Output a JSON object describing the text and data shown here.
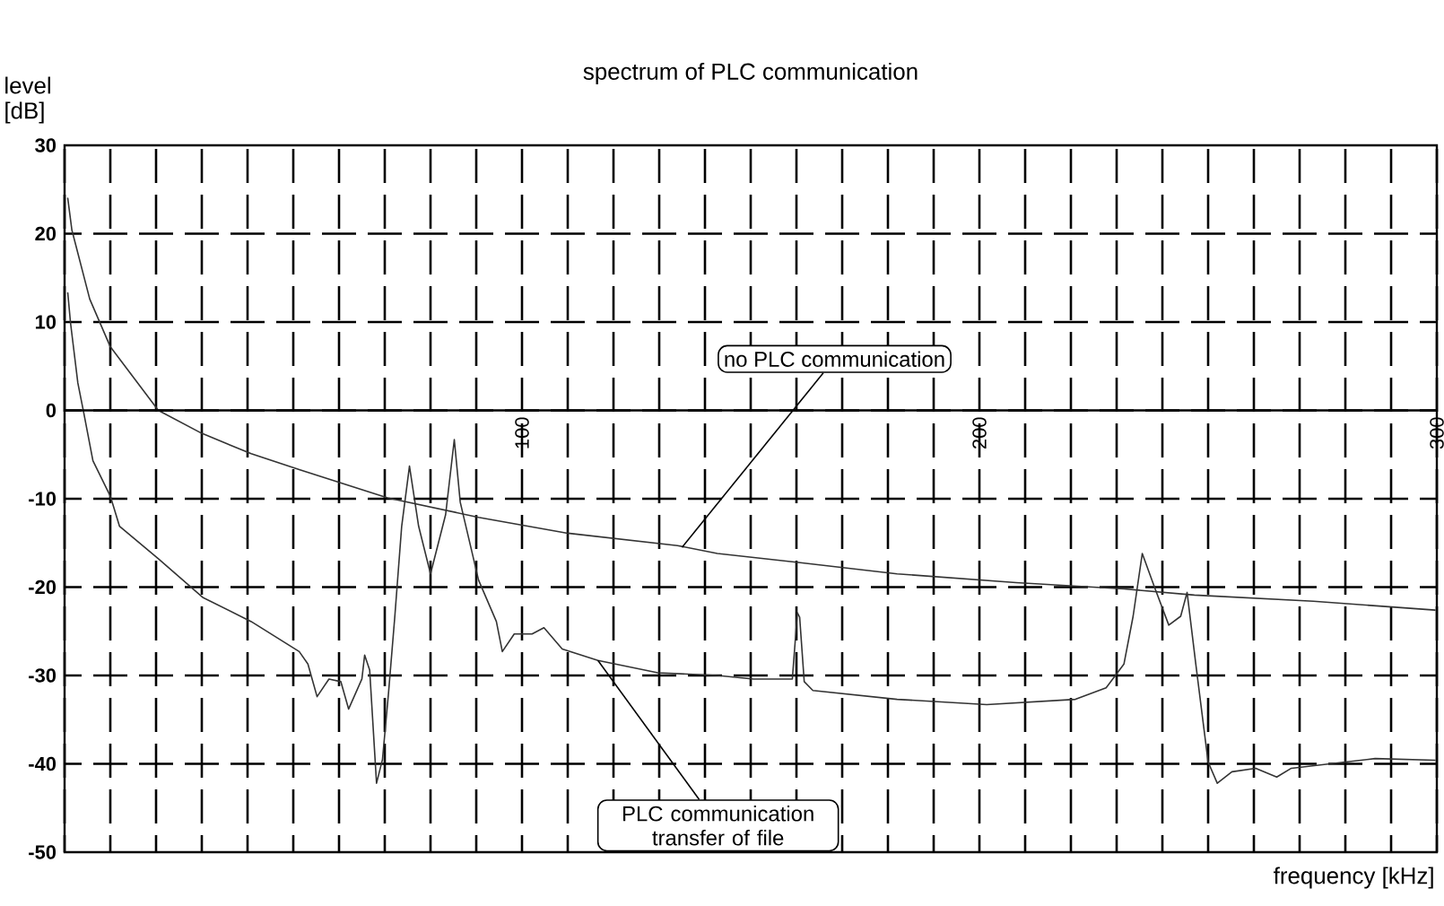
{
  "chart_data": {
    "type": "line",
    "title": "spectrum of PLC communication",
    "xlabel": "frequency [kHz]",
    "ylabel": "level [dB]",
    "xlim": [
      0,
      300
    ],
    "ylim": [
      -50,
      30
    ],
    "xticks": [
      {
        "value": 0,
        "label": null
      },
      {
        "value": 10,
        "label": null
      },
      {
        "value": 20,
        "label": null
      },
      {
        "value": 30,
        "label": null
      },
      {
        "value": 40,
        "label": null
      },
      {
        "value": 50,
        "label": null
      },
      {
        "value": 60,
        "label": null
      },
      {
        "value": 70,
        "label": null
      },
      {
        "value": 80,
        "label": null
      },
      {
        "value": 90,
        "label": null
      },
      100,
      {
        "value": 110,
        "label": null
      },
      {
        "value": 120,
        "label": null
      },
      {
        "value": 130,
        "label": null
      },
      {
        "value": 140,
        "label": null
      },
      {
        "value": 150,
        "label": null
      },
      {
        "value": 160,
        "label": null
      },
      {
        "value": 170,
        "label": null
      },
      {
        "value": 180,
        "label": null
      },
      {
        "value": 190,
        "label": null
      },
      200,
      {
        "value": 210,
        "label": null
      },
      {
        "value": 220,
        "label": null
      },
      {
        "value": 230,
        "label": null
      },
      {
        "value": 240,
        "label": null
      },
      {
        "value": 250,
        "label": null
      },
      {
        "value": 260,
        "label": null
      },
      {
        "value": 270,
        "label": null
      },
      {
        "value": 280,
        "label": null
      },
      {
        "value": 290,
        "label": null
      },
      300
    ],
    "yticks": [
      -50,
      -40,
      -30,
      -20,
      -10,
      0,
      10,
      20,
      30
    ],
    "grid": true,
    "series": [
      {
        "color": "#333333",
        "x": [
          0.7,
          1.6,
          5.5,
          10,
          20.5,
          30,
          40.8,
          51.3,
          70.6,
          90.5,
          110,
          134,
          142.7,
          160.4,
          182,
          208,
          231.6,
          247,
          273,
          299.6
        ],
        "values": [
          24,
          20.4,
          12.6,
          7.2,
          0,
          -2.6,
          -4.9,
          -6.7,
          -9.9,
          -12.1,
          -13.9,
          -15.3,
          -16.2,
          -17.2,
          -18.5,
          -19.5,
          -20.2,
          -20.9,
          -21.6,
          -22.6
        ]
      },
      {
        "color": "#333333",
        "x": [
          0.7,
          1.3,
          2.9,
          4.2,
          6.2,
          10,
          12,
          20.5,
          30.3,
          40.8,
          51.3,
          53.2,
          55.2,
          57.8,
          60.4,
          62.1,
          65,
          65.6,
          66.7,
          68.2,
          69.5,
          70.8,
          72.2,
          73.7,
          75.4,
          77.4,
          80,
          83.3,
          85.2,
          86.5,
          90.5,
          94.4,
          95.7,
          98.3,
          102.2,
          104.8,
          108.8,
          116.6,
          129.7,
          142.7,
          150.6,
          159.1,
          160.2,
          160.7,
          161.7,
          163.6,
          182,
          201.6,
          221,
          227.7,
          231.6,
          233.6,
          235.6,
          238.2,
          241.4,
          244,
          245.4,
          247.3,
          250,
          252,
          255.2,
          260.4,
          265,
          268.2,
          280,
          286.5,
          299.6
        ],
        "values": [
          13.3,
          9.9,
          3.1,
          -0.3,
          -5.7,
          -9.7,
          -13.1,
          -16.8,
          -21.2,
          -23.9,
          -27.3,
          -28.7,
          -32.4,
          -30.4,
          -30.7,
          -33.8,
          -30.4,
          -27.7,
          -29.4,
          -42.2,
          -39.5,
          -32.1,
          -23.3,
          -13.1,
          -6.3,
          -13.1,
          -18.5,
          -11.8,
          -3.3,
          -10.4,
          -19.2,
          -23.9,
          -27.3,
          -25.3,
          -25.3,
          -24.6,
          -27,
          -28.3,
          -29.7,
          -30,
          -30.4,
          -30.4,
          -22.9,
          -23.4,
          -30.7,
          -31.7,
          -32.7,
          -33.3,
          -32.7,
          -31.4,
          -28.7,
          -23.3,
          -16.2,
          -19.9,
          -24.3,
          -23.3,
          -20.6,
          -28.7,
          -39.8,
          -42.2,
          -40.9,
          -40.5,
          -41.5,
          -40.5,
          -39.8,
          -39.4,
          -39.6
        ]
      }
    ],
    "annotations": [
      {
        "text": "no PLC communication",
        "x": 135,
        "y": -15.5
      },
      {
        "text": "PLC communication transfer of file",
        "x": 116.6,
        "y": -28.3
      }
    ]
  }
}
